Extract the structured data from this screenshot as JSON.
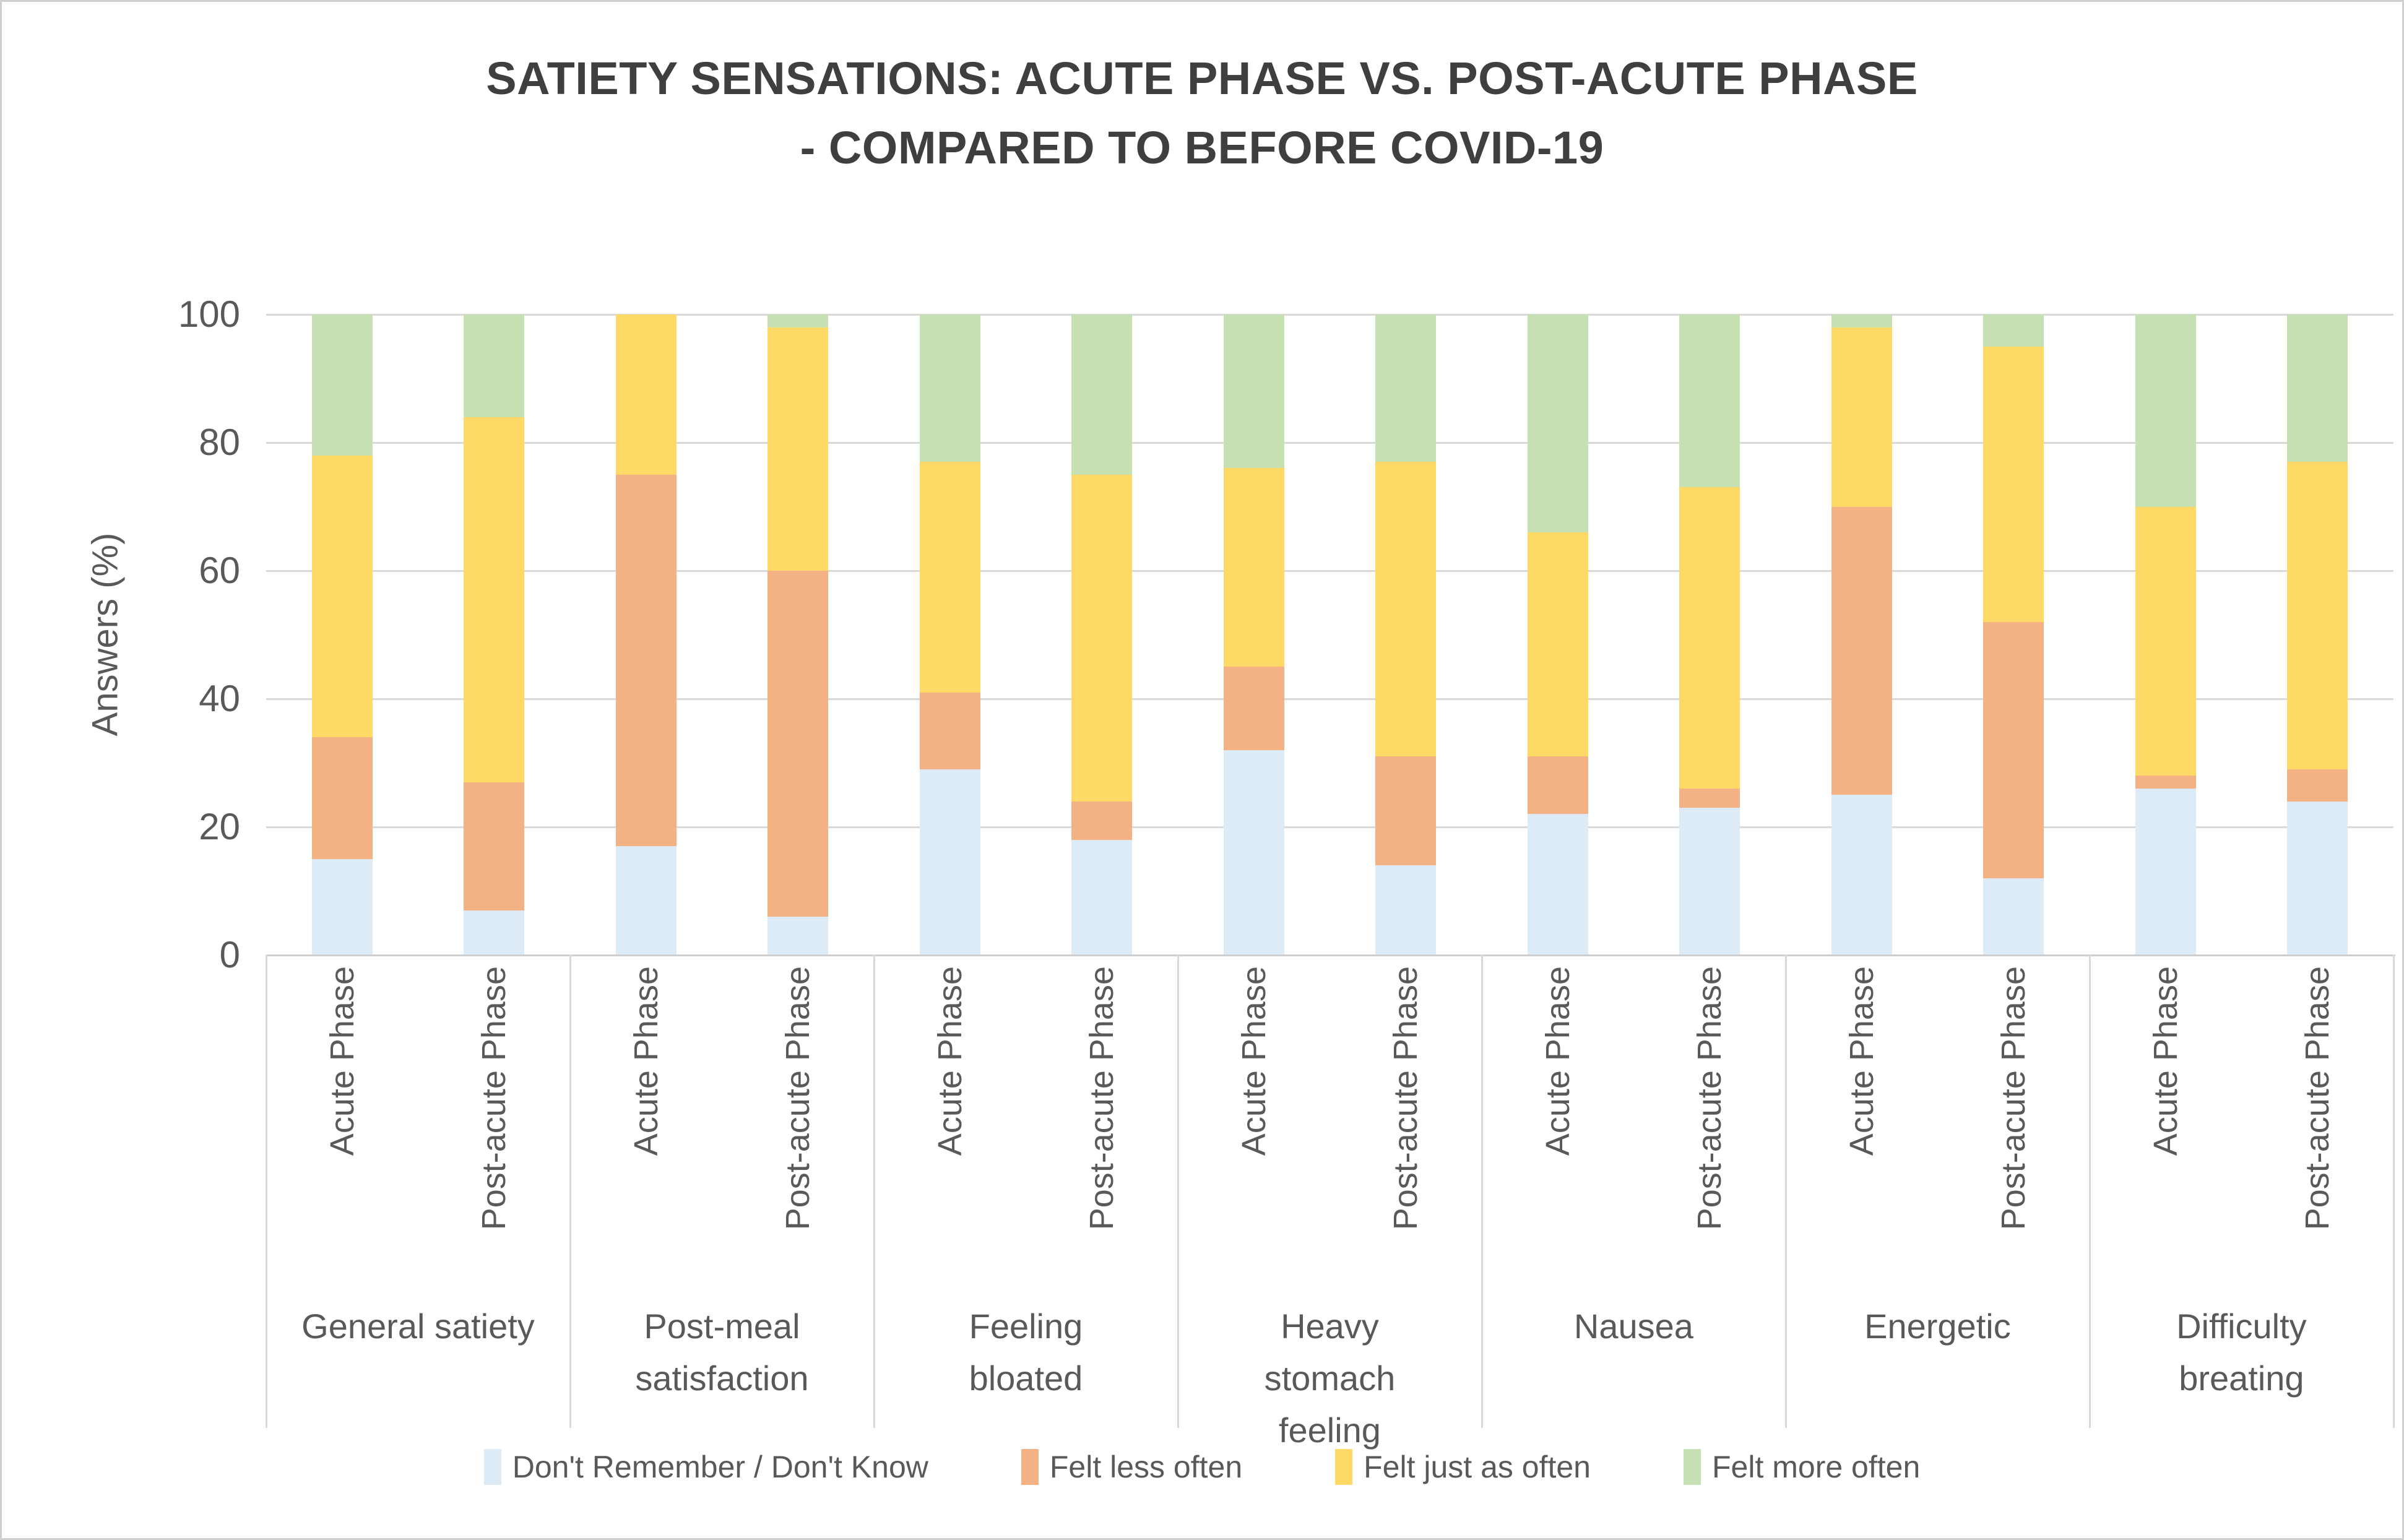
{
  "title": {
    "line1": "SATIETY SENSATIONS: ACUTE PHASE VS. POST-ACUTE PHASE",
    "line2": "- COMPARED TO BEFORE COVID-19"
  },
  "y_axis": {
    "label": "Answers (%)",
    "ticks": [
      0,
      20,
      40,
      60,
      80,
      100
    ]
  },
  "colors": {
    "dont_remember": "#DDEBF7",
    "felt_less_often": "#F4B183",
    "felt_just_as_often": "#FFD966",
    "felt_more_often": "#C6E0B4",
    "gridline": "#D9D9D9",
    "text": "#595959",
    "title_text": "#3F3F3F"
  },
  "chart_data": {
    "type": "bar",
    "stacked": true,
    "grid": true,
    "legend_position": "bottom",
    "title": "SATIETY SENSATIONS: ACUTE PHASE VS. POST-ACUTE PHASE - COMPARED TO BEFORE COVID-19",
    "xlabel": "",
    "ylabel": "Answers (%)",
    "ylim": [
      0,
      100
    ],
    "categories": [
      "General satiety",
      "Post-meal satisfaction",
      "Feeling bloated",
      "Heavy stomach feeling",
      "Nausea",
      "Energetic",
      "Difficulty breating"
    ],
    "bar_labels": [
      "Acute Phase",
      "Post-acute Phase"
    ],
    "bar_order_note": "values arrays are ordered [cat1-Acute, cat1-Post-acute, cat2-Acute, cat2-Post-acute, ...] in percent",
    "series": [
      {
        "name": "Don't Remember / Don't Know",
        "color": "#DDEBF7",
        "values": [
          15,
          7,
          17,
          6,
          29,
          18,
          32,
          14,
          22,
          23,
          25,
          12,
          26,
          24
        ]
      },
      {
        "name": "Felt less often",
        "color": "#F4B183",
        "values": [
          19,
          20,
          58,
          54,
          12,
          6,
          13,
          17,
          9,
          3,
          45,
          40,
          2,
          5
        ]
      },
      {
        "name": "Felt just as often",
        "color": "#FFD966",
        "values": [
          44,
          57,
          25,
          38,
          36,
          51,
          31,
          46,
          35,
          47,
          28,
          43,
          42,
          48
        ]
      },
      {
        "name": "Felt more often",
        "color": "#C6E0B4",
        "values": [
          22,
          16,
          0,
          2,
          23,
          25,
          24,
          23,
          34,
          27,
          2,
          5,
          30,
          23
        ]
      }
    ]
  }
}
